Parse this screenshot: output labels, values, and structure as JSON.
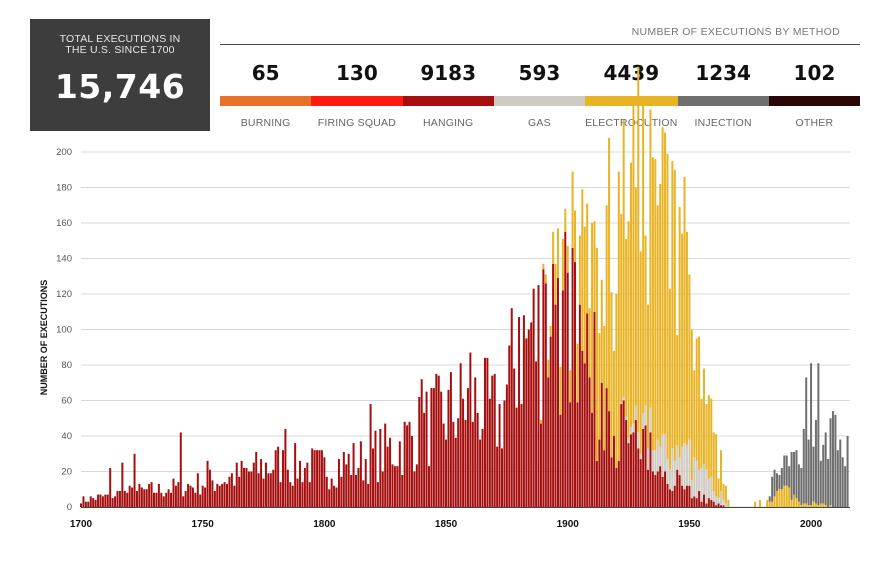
{
  "summary": {
    "total_label": "TOTAL EXECUTIONS IN THE U.S. SINCE 1700",
    "total_value": "15,746"
  },
  "methods_title": "NUMBER OF EXECUTIONS BY METHOD",
  "methods": [
    {
      "name": "BURNING",
      "count": "65",
      "color": "#e8722a"
    },
    {
      "name": "FIRING SQUAD",
      "count": "130",
      "color": "#ff1a0e"
    },
    {
      "name": "HANGING",
      "count": "9183",
      "color": "#a50f0f"
    },
    {
      "name": "GAS",
      "count": "593",
      "color": "#cfcbc2"
    },
    {
      "name": "ELECTROCUTION",
      "count": "4439",
      "color": "#e8b426"
    },
    {
      "name": "INJECTION",
      "count": "1234",
      "color": "#6f6f6f"
    },
    {
      "name": "OTHER",
      "count": "102",
      "color": "#2b0606"
    }
  ],
  "chart_data": {
    "type": "bar",
    "stacked": true,
    "title": "",
    "xlabel": "",
    "ylabel": "NUMBER OF EXECUTIONS",
    "xlim": [
      1700,
      2016
    ],
    "ylim": [
      0,
      200
    ],
    "x_ticks": [
      1700,
      1750,
      1800,
      1850,
      1900,
      1950,
      2000
    ],
    "y_ticks": [
      0,
      20,
      40,
      60,
      80,
      100,
      120,
      140,
      160,
      180,
      200
    ],
    "grid": true,
    "stack_order": [
      "hanging",
      "gas",
      "electrocution",
      "injection"
    ],
    "colors": {
      "hanging": "#a50f0f",
      "gas": "#cfcbc2",
      "electrocution": "#e8b426",
      "injection": "#6f6f6f"
    },
    "anchors": {
      "hanging": [
        [
          1700,
          4
        ],
        [
          1720,
          8
        ],
        [
          1740,
          11
        ],
        [
          1760,
          16
        ],
        [
          1780,
          24
        ],
        [
          1800,
          22
        ],
        [
          1815,
          26
        ],
        [
          1830,
          34
        ],
        [
          1845,
          48
        ],
        [
          1860,
          60
        ],
        [
          1872,
          50
        ],
        [
          1880,
          90
        ],
        [
          1890,
          100
        ],
        [
          1898,
          110
        ],
        [
          1905,
          96
        ],
        [
          1912,
          68
        ],
        [
          1920,
          48
        ],
        [
          1930,
          32
        ],
        [
          1940,
          24
        ],
        [
          1950,
          10
        ],
        [
          1960,
          2
        ],
        [
          1966,
          0
        ]
      ],
      "gas": [
        [
          1920,
          0
        ],
        [
          1924,
          2
        ],
        [
          1932,
          8
        ],
        [
          1938,
          16
        ],
        [
          1946,
          22
        ],
        [
          1952,
          20
        ],
        [
          1958,
          12
        ],
        [
          1964,
          4
        ],
        [
          1966,
          0
        ]
      ],
      "electrocution": [
        [
          1888,
          0
        ],
        [
          1890,
          4
        ],
        [
          1900,
          28
        ],
        [
          1910,
          80
        ],
        [
          1920,
          108
        ],
        [
          1930,
          138
        ],
        [
          1936,
          150
        ],
        [
          1940,
          120
        ],
        [
          1948,
          100
        ],
        [
          1955,
          44
        ],
        [
          1962,
          20
        ],
        [
          1966,
          6
        ],
        [
          1968,
          0
        ],
        [
          1984,
          6
        ],
        [
          1990,
          10
        ],
        [
          1995,
          3
        ],
        [
          2000,
          2
        ],
        [
          2010,
          0
        ]
      ],
      "injection": [
        [
          1982,
          0
        ],
        [
          1984,
          12
        ],
        [
          1988,
          8
        ],
        [
          1992,
          22
        ],
        [
          1996,
          40
        ],
        [
          1999,
          72
        ],
        [
          2001,
          62
        ],
        [
          2004,
          52
        ],
        [
          2008,
          38
        ],
        [
          2012,
          40
        ],
        [
          2015,
          28
        ]
      ]
    },
    "pinned": [
      {
        "year": 1712,
        "hanging": 22
      },
      {
        "year": 1717,
        "hanging": 25
      },
      {
        "year": 1722,
        "hanging": 30
      },
      {
        "year": 1741,
        "hanging": 42
      },
      {
        "year": 1752,
        "hanging": 26
      },
      {
        "year": 1784,
        "hanging": 44
      },
      {
        "year": 1819,
        "hanging": 58
      },
      {
        "year": 1840,
        "hanging": 72
      },
      {
        "year": 1860,
        "hanging": 87
      },
      {
        "year": 1880,
        "hanging": 107
      },
      {
        "year": 1885,
        "hanging": 104
      },
      {
        "year": 1890,
        "hanging": 134
      },
      {
        "year": 1895,
        "hanging": 114
      },
      {
        "year": 1900,
        "hanging": 132
      },
      {
        "year": 1902,
        "hanging": 146
      },
      {
        "year": 1903,
        "hanging": 138
      },
      {
        "year": 1912,
        "hanging": 26,
        "electrocution": 120
      },
      {
        "year": 1935,
        "hanging": 20,
        "gas": 12,
        "electrocution": 165
      },
      {
        "year": 1936,
        "hanging": 18,
        "gas": 14,
        "electrocution": 164
      },
      {
        "year": 1947,
        "hanging": 12,
        "gas": 22,
        "electrocution": 120
      },
      {
        "year": 2000,
        "injection": 80
      }
    ],
    "gaps": [
      1967,
      1968,
      1969,
      1970,
      1971,
      1972,
      1973,
      1974,
      1975,
      1976,
      1978,
      1980,
      1981
    ]
  }
}
